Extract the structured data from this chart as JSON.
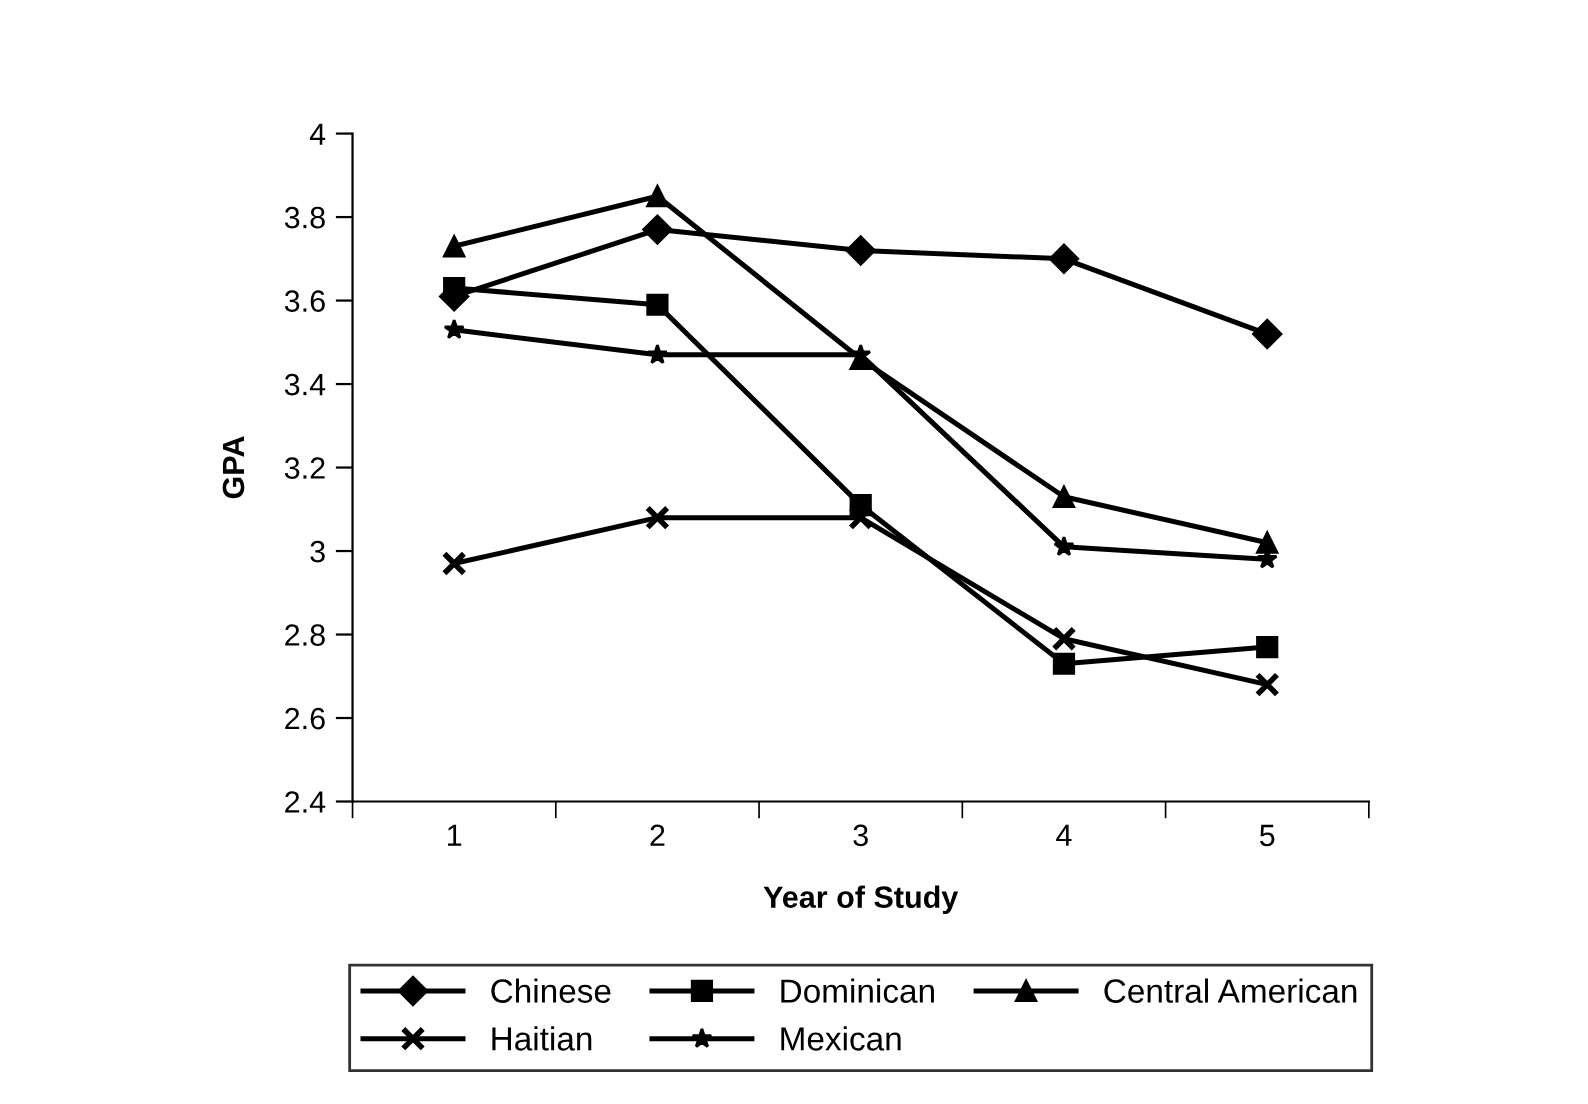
{
  "chart_data": {
    "type": "line",
    "xlabel": "Year of Study",
    "ylabel": "GPA",
    "categories": [
      "1",
      "2",
      "3",
      "4",
      "5"
    ],
    "series": [
      {
        "name": "Chinese",
        "color": "#000000",
        "marker": "diamond",
        "values": [
          3.61,
          3.77,
          3.72,
          3.7,
          3.52
        ]
      },
      {
        "name": "Dominican",
        "color": "#000000",
        "marker": "square",
        "values": [
          3.63,
          3.59,
          3.11,
          2.73,
          2.77
        ]
      },
      {
        "name": "Central American",
        "color": "#000000",
        "marker": "triangle",
        "values": [
          3.73,
          3.85,
          3.46,
          3.13,
          3.02
        ]
      },
      {
        "name": "Haitian",
        "color": "#000000",
        "marker": "cross",
        "values": [
          2.97,
          3.08,
          3.08,
          2.79,
          2.68
        ]
      },
      {
        "name": "Mexican",
        "color": "#000000",
        "marker": "star",
        "values": [
          3.53,
          3.47,
          3.47,
          3.01,
          2.98
        ]
      }
    ],
    "ylim": [
      2.4,
      4
    ],
    "yticks": [
      2.4,
      2.6,
      2.8,
      3,
      3.2,
      3.4,
      3.6,
      3.8,
      4
    ],
    "grid": false,
    "legend": "bottom",
    "line_style": "solid"
  }
}
